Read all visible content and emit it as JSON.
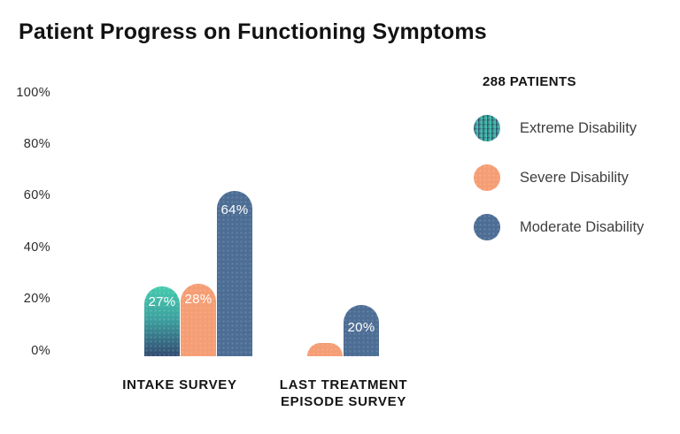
{
  "title": "Patient Progress on Functioning Symptoms",
  "legend": {
    "header": "288 PATIENTS",
    "items": [
      {
        "label": "Extreme Disability",
        "swatch": "teal-gradient"
      },
      {
        "label": "Severe Disability",
        "swatch": "orange"
      },
      {
        "label": "Moderate Disability",
        "swatch": "blue"
      }
    ]
  },
  "colors": {
    "teal_top": "#44CBAD",
    "teal_bottom": "#324B72",
    "orange": "#F59D74",
    "blue": "#4C6D94",
    "bar_value_text": "#FFFFFF",
    "text": "#141414"
  },
  "chart_data": {
    "type": "bar",
    "categories": [
      "INTAKE SURVEY",
      "LAST TREATMENT EPISODE SURVEY"
    ],
    "series": [
      {
        "name": "Extreme Disability",
        "values": [
          27,
          0
        ],
        "labels": [
          "27%",
          ""
        ]
      },
      {
        "name": "Severe Disability",
        "values": [
          28,
          5
        ],
        "labels": [
          "28%",
          ""
        ]
      },
      {
        "name": "Moderate Disability",
        "values": [
          64,
          20
        ],
        "labels": [
          "64%",
          "20%"
        ]
      }
    ],
    "yticks": [
      "100%",
      "80%",
      "60%",
      "40%",
      "20%",
      "0%"
    ],
    "ylim": [
      0,
      100
    ],
    "grid": false,
    "legend_position": "right",
    "annotation": "288 PATIENTS"
  }
}
